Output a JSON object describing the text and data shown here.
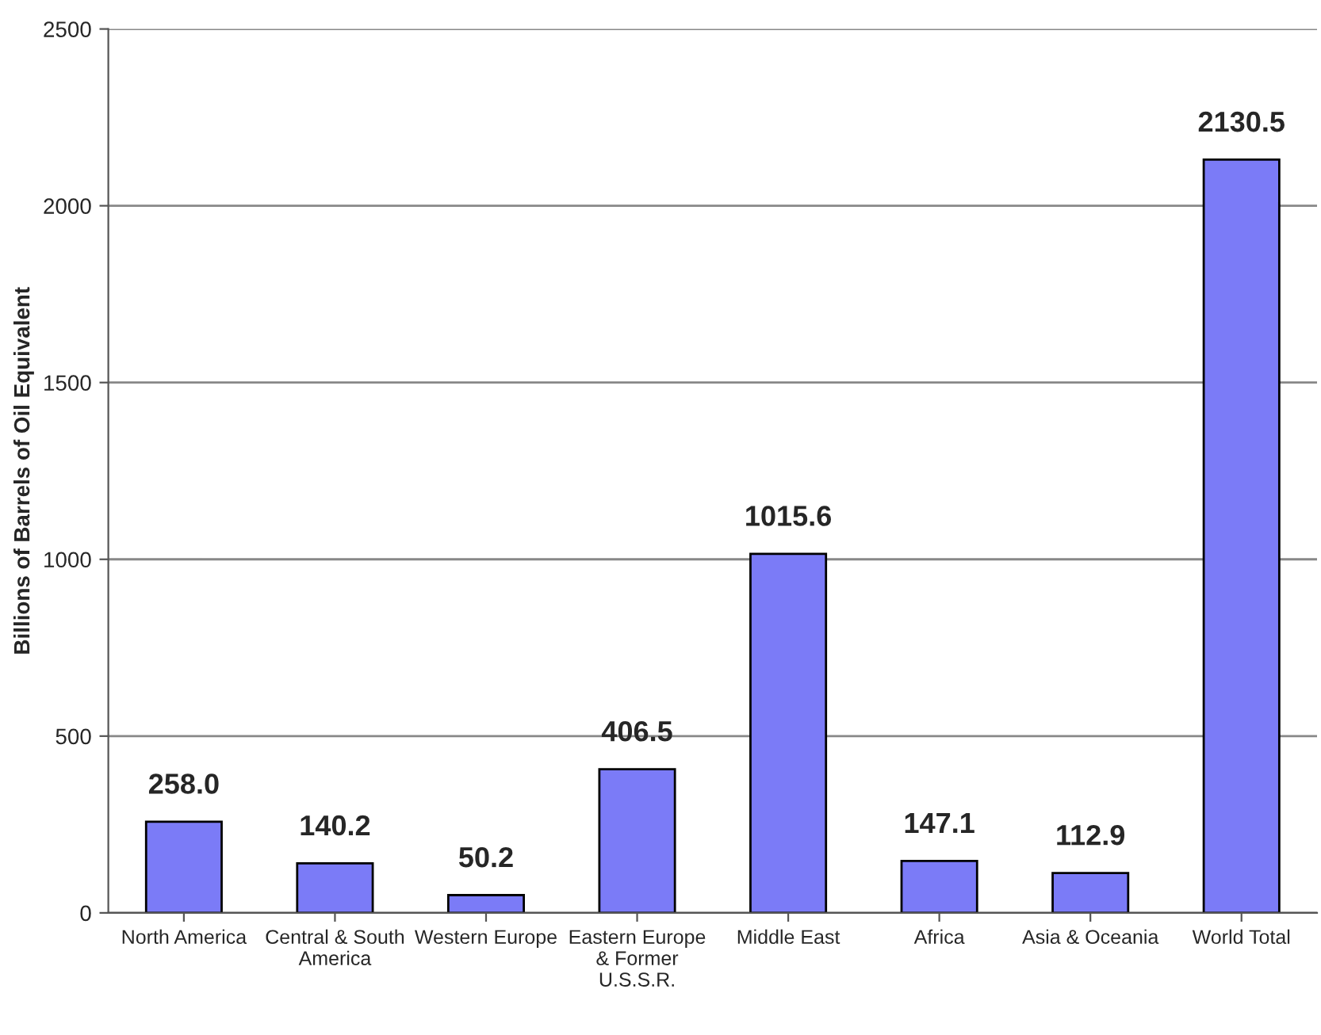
{
  "chart_data": {
    "type": "bar",
    "ylabel": "Billions of Barrels of Oil Equivalent",
    "categories": [
      "North America",
      "Central & South\nAmerica",
      "Western Europe",
      "Eastern Europe\n& Former\nU.S.S.R.",
      "Middle East",
      "Africa",
      "Asia & Oceania",
      "World Total"
    ],
    "values": [
      258.0,
      140.2,
      50.2,
      406.5,
      1015.6,
      147.1,
      112.9,
      2130.5
    ],
    "color": "#7b7bf7",
    "ylim": [
      0,
      2500
    ],
    "yticks": [
      0,
      500,
      1000,
      1500,
      2000,
      2500
    ],
    "value_labels": [
      "258.0",
      "140.2",
      "50.2",
      "406.5",
      "1015.6",
      "147.1",
      "112.9",
      "2130.5"
    ],
    "grid": "y"
  }
}
